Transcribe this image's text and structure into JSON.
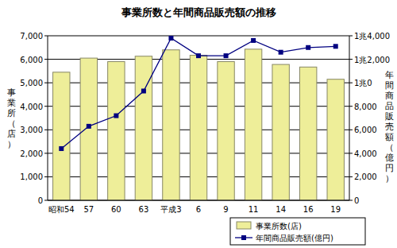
{
  "chart_data": {
    "type": "bar",
    "title": "事業所数と年間商品販売額の推移",
    "categories": [
      "昭和54",
      "57",
      "60",
      "63",
      "平成3",
      "6",
      "9",
      "11",
      "14",
      "16",
      "19"
    ],
    "series": [
      {
        "name": "事業所数(店)",
        "type": "bar",
        "color": "#eeee99",
        "values": [
          5450,
          6050,
          5900,
          6130,
          6400,
          6170,
          5900,
          6430,
          5780,
          5670,
          5150
        ]
      },
      {
        "name": "年間商品販売額(億円)",
        "type": "line",
        "color": "#000080",
        "marker": "square",
        "axis": "y2",
        "values": [
          4400,
          6300,
          7200,
          9300,
          13800,
          12300,
          12300,
          13600,
          12600,
          13000,
          13100
        ]
      }
    ],
    "ylabel": "事業所（店）",
    "y2label": "年間商品販売額（億円）",
    "ylim": [
      0,
      7000
    ],
    "yticks": [
      0,
      {
        "value": 1000,
        "label": "1,000"
      },
      {
        "value": 2000,
        "label": "2,000"
      },
      {
        "value": 3000,
        "label": "3,000"
      },
      {
        "value": 4000,
        "label": "4,000"
      },
      {
        "value": 5000,
        "label": "5,000"
      },
      {
        "value": 6000,
        "label": "6,000"
      },
      {
        "value": 7000,
        "label": "7,000"
      }
    ],
    "y2lim": [
      0,
      14000
    ],
    "y2ticks": [
      0,
      {
        "value": 2000,
        "label": "2,000"
      },
      {
        "value": 4000,
        "label": "4,000"
      },
      {
        "value": 6000,
        "label": "6,000"
      },
      {
        "value": 8000,
        "label": "8,000"
      },
      {
        "value": 10000,
        "label": "1兆0"
      },
      {
        "value": 12000,
        "label": "1兆2,000"
      },
      {
        "value": 14000,
        "label": "1兆4,000"
      }
    ],
    "grid": true,
    "legend": "bottom-right"
  }
}
